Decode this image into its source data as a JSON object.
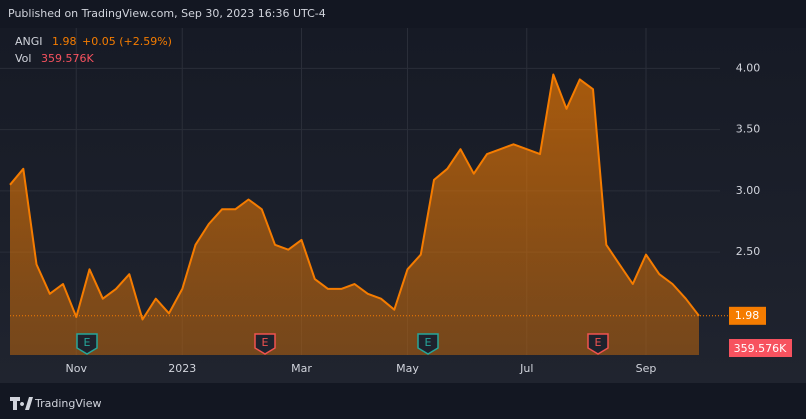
{
  "chart_data": {
    "type": "area",
    "title": "Published on TradingView.com, Sep 30, 2023 16:36 UTC-4",
    "symbol": "ANGI",
    "last_price": 1.98,
    "change": "+0.05 (+2.59%)",
    "volume_label": "Vol",
    "volume": "359.576K",
    "earnings_marker": "E",
    "brand": "TradingView",
    "color": "#f57c00",
    "categories": [
      null,
      null,
      null,
      null,
      null,
      "Nov",
      null,
      null,
      null,
      null,
      null,
      null,
      null,
      "2023",
      null,
      null,
      null,
      null,
      null,
      null,
      null,
      null,
      "Mar",
      null,
      null,
      null,
      null,
      null,
      null,
      null,
      "May",
      null,
      null,
      null,
      null,
      null,
      null,
      null,
      null,
      "Jul",
      null,
      null,
      null,
      null,
      null,
      null,
      null,
      null,
      "Sep",
      null,
      null,
      null,
      null
    ],
    "values": [
      3.05,
      3.18,
      2.4,
      2.16,
      2.24,
      1.97,
      2.36,
      2.12,
      2.2,
      2.32,
      1.95,
      2.12,
      2.0,
      2.2,
      2.56,
      2.73,
      2.85,
      2.85,
      2.93,
      2.85,
      2.56,
      2.52,
      2.6,
      2.28,
      2.2,
      2.2,
      2.24,
      2.16,
      2.12,
      2.03,
      2.36,
      2.48,
      3.09,
      3.18,
      3.34,
      3.14,
      3.3,
      3.34,
      3.38,
      3.34,
      3.3,
      3.95,
      3.67,
      3.91,
      3.83,
      2.56,
      2.4,
      2.24,
      2.48,
      2.32,
      2.24,
      2.12,
      1.98
    ],
    "ylim": [
      1.66,
      4.33
    ],
    "yticks": [
      {
        "value": 2.5,
        "label": "2.50"
      },
      {
        "value": 3,
        "label": "3.00"
      },
      {
        "value": 3.5,
        "label": "3.50"
      },
      {
        "value": 4,
        "label": "4.00"
      }
    ],
    "grid": true
  }
}
